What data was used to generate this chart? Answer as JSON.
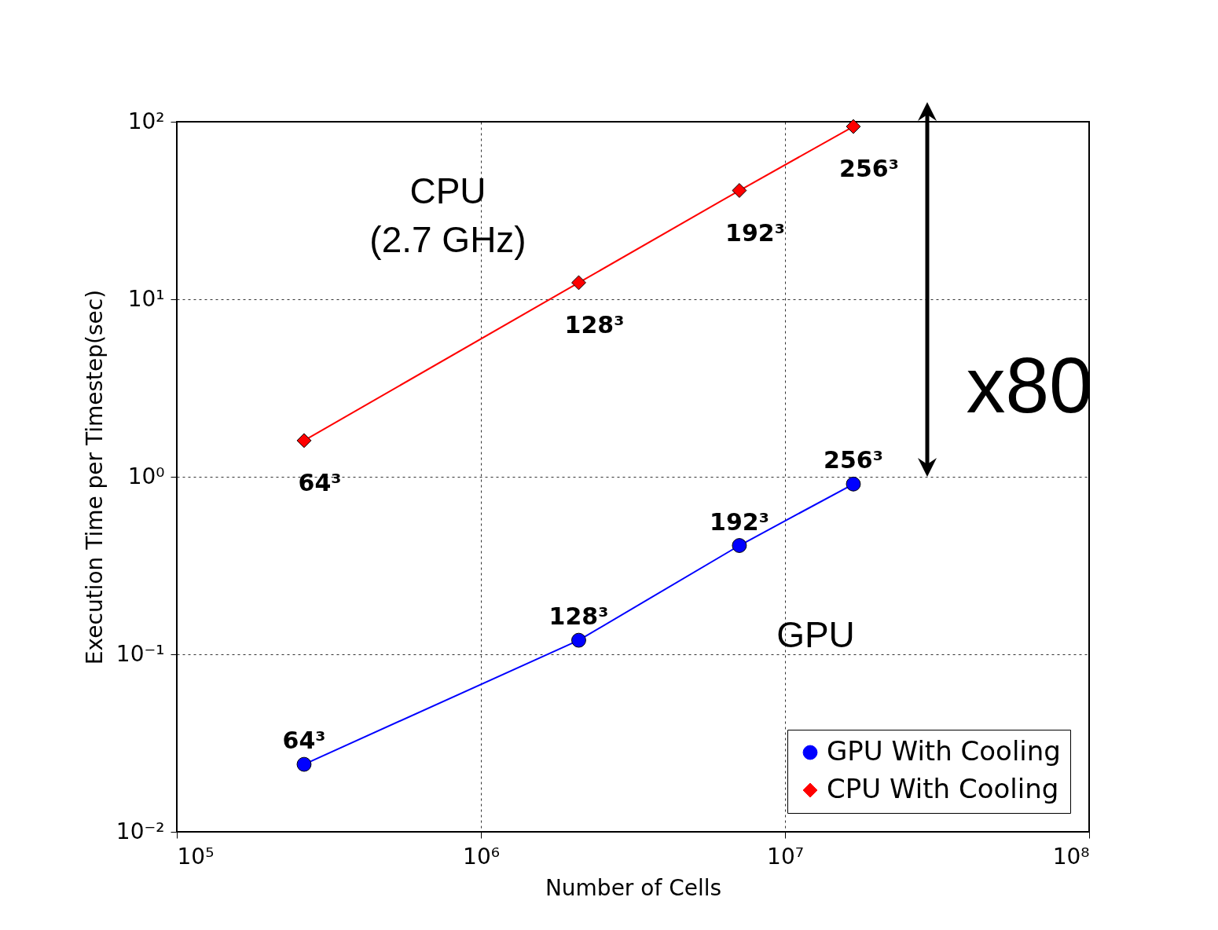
{
  "chart_data": {
    "type": "line",
    "xlabel": "Number of Cells",
    "ylabel": "Execution Time per Timestep(sec)",
    "x": [
      262144,
      2097152,
      7077888,
      16777216
    ],
    "series": [
      {
        "name": "GPU With Cooling",
        "color": "#0000ff",
        "marker": "circle",
        "values": [
          0.024,
          0.12,
          0.41,
          0.91
        ]
      },
      {
        "name": "CPU With Cooling",
        "color": "#ff0000",
        "marker": "diamond",
        "values": [
          1.6,
          12.4,
          41,
          94
        ]
      }
    ],
    "log": "xy",
    "xlim": [
      100000,
      100000000
    ],
    "ylim": [
      0.01,
      100
    ],
    "xticks": [
      {
        "value": 100000,
        "label": "10⁵"
      },
      {
        "value": 1000000,
        "label": "10⁶"
      },
      {
        "value": 10000000,
        "label": "10⁷"
      },
      {
        "value": 100000000,
        "label": "10⁸"
      }
    ],
    "yticks": [
      {
        "value": 0.01,
        "label": "10⁻²"
      },
      {
        "value": 0.1,
        "label": "10⁻¹"
      },
      {
        "value": 1,
        "label": "10⁰"
      },
      {
        "value": 10,
        "label": "10¹"
      },
      {
        "value": 100,
        "label": "10²"
      }
    ],
    "grid": true,
    "legend": "bottom right",
    "annotations": [
      "CPU\n(2.7 GHz)",
      "GPU",
      "x80",
      {
        "text": "64³",
        "x": 262144,
        "y": 1.6
      },
      {
        "text": "128³",
        "x": 2097152,
        "y": 12.4
      },
      {
        "text": "192³",
        "x": 7077888,
        "y": 41
      },
      {
        "text": "256³",
        "x": 16777216,
        "y": 94
      },
      {
        "text": "64³",
        "x": 262144,
        "y": 0.024
      },
      {
        "text": "128³",
        "x": 2097152,
        "y": 0.12
      },
      {
        "text": "192³",
        "x": 7077888,
        "y": 0.41
      },
      {
        "text": "256³",
        "x": 16777216,
        "y": 0.91
      }
    ]
  }
}
